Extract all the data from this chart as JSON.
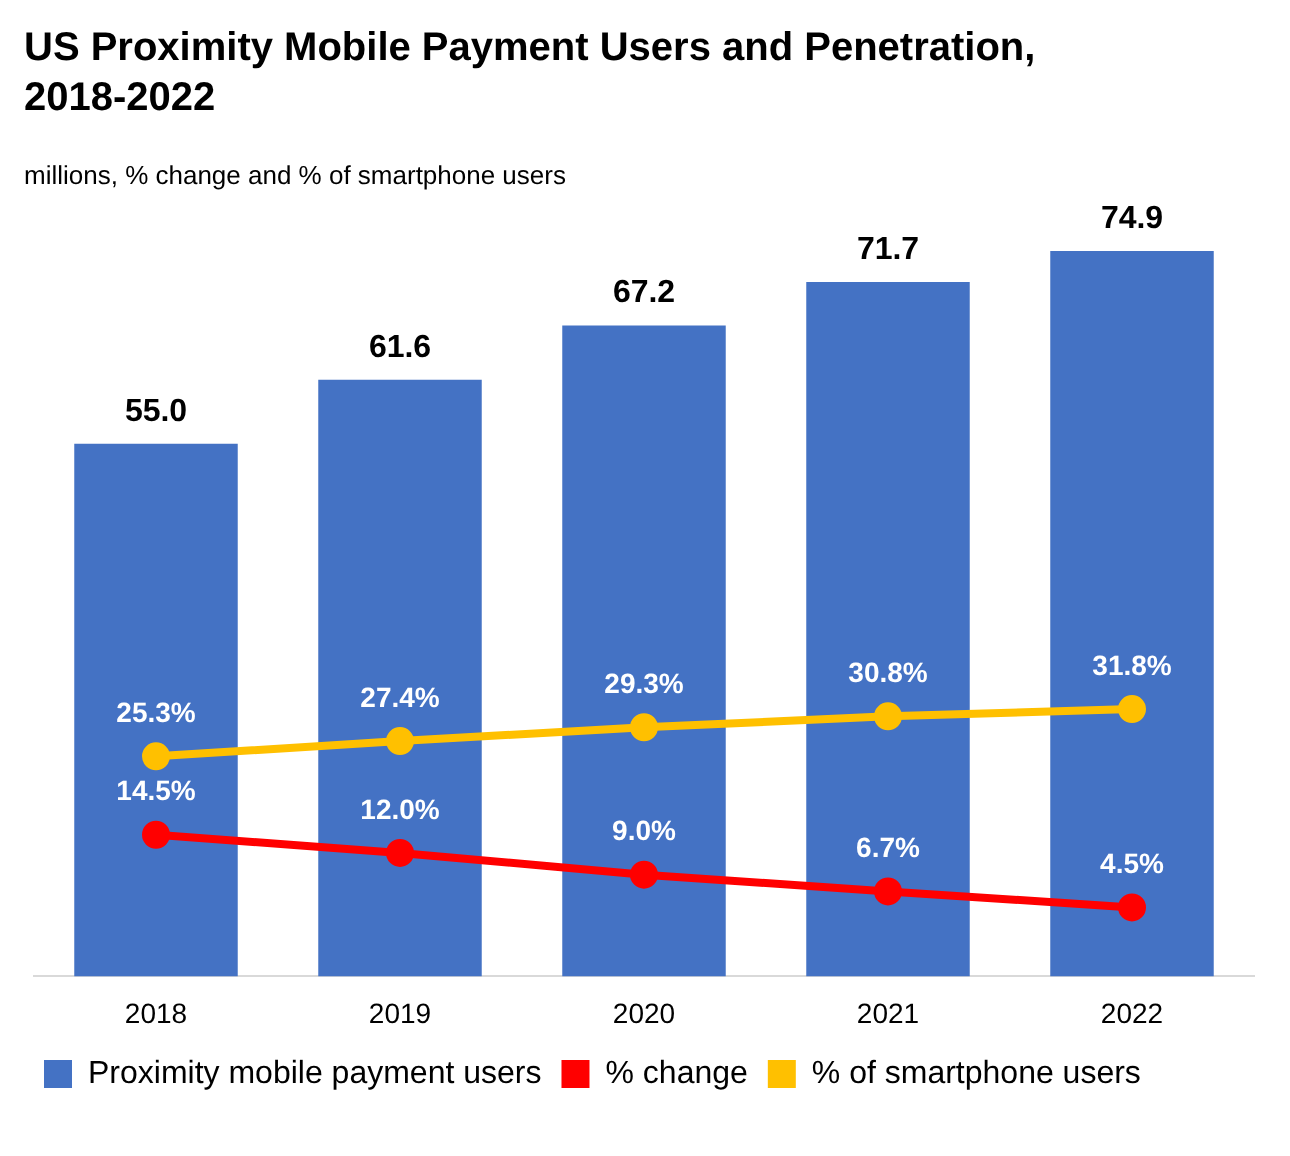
{
  "chart_data": {
    "type": "bar",
    "title": "US Proximity Mobile Payment Users and Penetration, 2018-2022",
    "subtitle": "millions, % change and % of smartphone users",
    "categories": [
      "2018",
      "2019",
      "2020",
      "2021",
      "2022"
    ],
    "series": [
      {
        "name": "Proximity mobile payment users",
        "color": "#4472c4",
        "values": [
          55.0,
          61.6,
          67.2,
          71.7,
          74.9
        ],
        "value_labels": [
          "55.0",
          "61.6",
          "67.2",
          "71.7",
          "74.9"
        ]
      },
      {
        "name": "% change",
        "type": "line",
        "axis": "y2",
        "color": "#ff0000",
        "values": [
          14.5,
          12.0,
          9.0,
          6.7,
          4.5
        ],
        "value_labels": [
          "14.5%",
          "12.0%",
          "9.0%",
          "6.7%",
          "4.5%"
        ]
      },
      {
        "name": "% of smartphone users",
        "type": "line",
        "axis": "y2",
        "color": "#ffc000",
        "values": [
          25.3,
          27.4,
          29.3,
          30.8,
          31.8
        ],
        "value_labels": [
          "25.3%",
          "27.4%",
          "29.3%",
          "30.8%",
          "31.8%"
        ]
      }
    ],
    "ylim": [
      0,
      75
    ],
    "y2lim": [
      -5,
      95
    ],
    "tick_labels": "x",
    "grid": false,
    "legend": "bottom left",
    "marker": "circle"
  }
}
